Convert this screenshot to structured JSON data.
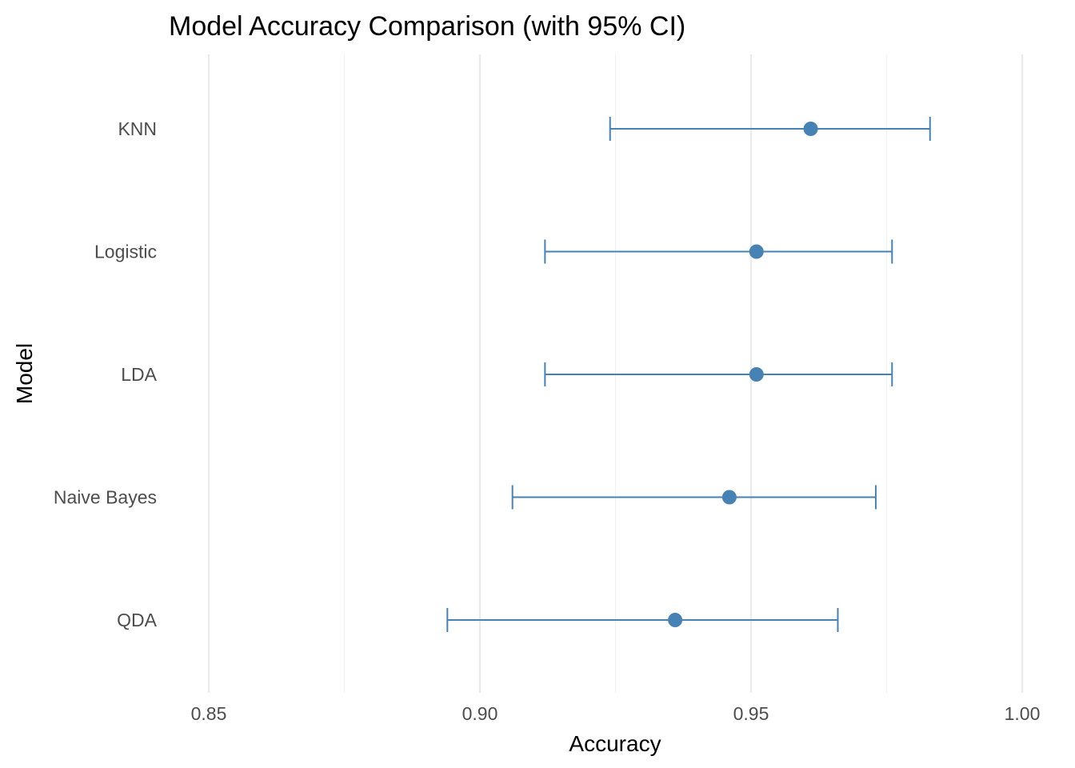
{
  "chart_data": {
    "type": "scatter",
    "title": "Model Accuracy Comparison (with 95% CI)",
    "xlabel": "Accuracy",
    "ylabel": "Model",
    "xlim": [
      0.835,
      1.0
    ],
    "x_ticks": [
      0.85,
      0.9,
      0.95,
      1.0
    ],
    "x_tick_labels": [
      "0.85",
      "0.90",
      "0.95",
      "1.00"
    ],
    "grid": true,
    "legend": "none",
    "categories": [
      "KNN",
      "Logistic",
      "LDA",
      "Naive Bayes",
      "QDA"
    ],
    "points": [
      {
        "model": "KNN",
        "accuracy": 0.961,
        "ci_low": 0.924,
        "ci_high": 0.983
      },
      {
        "model": "Logistic",
        "accuracy": 0.951,
        "ci_low": 0.912,
        "ci_high": 0.976
      },
      {
        "model": "LDA",
        "accuracy": 0.951,
        "ci_low": 0.912,
        "ci_high": 0.976
      },
      {
        "model": "Naive Bayes",
        "accuracy": 0.946,
        "ci_low": 0.906,
        "ci_high": 0.973
      },
      {
        "model": "QDA",
        "accuracy": 0.936,
        "ci_low": 0.894,
        "ci_high": 0.966
      }
    ],
    "colors": {
      "point": "#4682b4",
      "grid_major": "#ebebeb",
      "grid_minor": "#f2f2f2"
    }
  }
}
